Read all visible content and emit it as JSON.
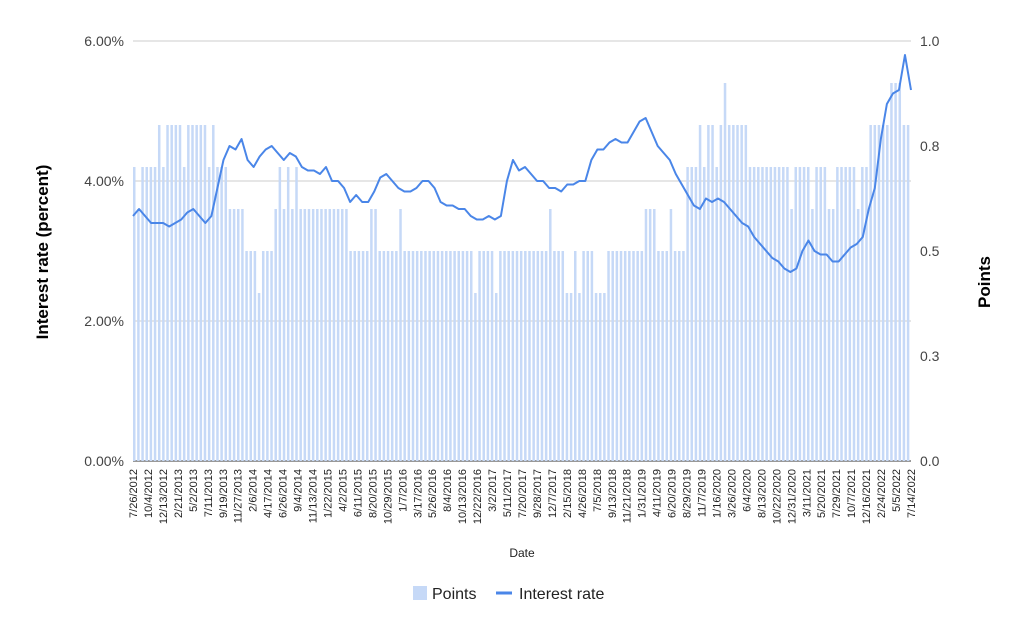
{
  "chart_data": {
    "type": "bar+line",
    "xlabel": "Date",
    "ylabel_left": "Interest rate (percent)",
    "ylabel_right": "Points",
    "ylim_left": [
      0,
      6
    ],
    "ylim_right": [
      0,
      1
    ],
    "left_ticks": [
      "0.00%",
      "2.00%",
      "4.00%",
      "6.00%"
    ],
    "right_ticks": [
      "0.0",
      "0.3",
      "0.5",
      "0.8",
      "1.0"
    ],
    "grid": true,
    "legend_position": "bottom",
    "x_tick_labels": [
      "7/26/2012",
      "10/4/2012",
      "12/13/2012",
      "2/21/2013",
      "5/2/2013",
      "7/11/2013",
      "9/19/2013",
      "11/27/2013",
      "2/6/2014",
      "4/17/2014",
      "6/26/2014",
      "9/4/2014",
      "11/13/2014",
      "1/22/2015",
      "4/2/2015",
      "6/11/2015",
      "8/20/2015",
      "10/29/2015",
      "1/7/2016",
      "3/17/2016",
      "5/26/2016",
      "8/4/2016",
      "10/13/2016",
      "12/22/2016",
      "3/2/2017",
      "5/11/2017",
      "7/20/2017",
      "9/28/2017",
      "12/7/2017",
      "2/15/2018",
      "4/26/2018",
      "7/5/2018",
      "9/13/2018",
      "11/21/2018",
      "1/31/2019",
      "4/11/2019",
      "6/20/2019",
      "8/29/2019",
      "11/7/2019",
      "1/16/2020",
      "3/26/2020",
      "6/4/2020",
      "8/13/2020",
      "10/22/2020",
      "12/31/2020",
      "3/11/2021",
      "5/20/2021",
      "7/29/2021",
      "10/7/2021",
      "12/16/2021",
      "2/24/2022",
      "5/5/2022",
      "7/14/2022"
    ],
    "series": [
      {
        "name": "Points",
        "type": "bar",
        "axis": "right",
        "color": "#c6d9f7",
        "values": [
          0.7,
          0.6,
          0.7,
          0.7,
          0.7,
          0.7,
          0.8,
          0.7,
          0.8,
          0.8,
          0.8,
          0.8,
          0.7,
          0.8,
          0.8,
          0.8,
          0.8,
          0.8,
          0.7,
          0.8,
          0.7,
          0.7,
          0.7,
          0.6,
          0.6,
          0.6,
          0.6,
          0.5,
          0.5,
          0.5,
          0.4,
          0.5,
          0.5,
          0.5,
          0.6,
          0.7,
          0.6,
          0.7,
          0.6,
          0.7,
          0.6,
          0.6,
          0.6,
          0.6,
          0.6,
          0.6,
          0.6,
          0.6,
          0.6,
          0.6,
          0.6,
          0.6,
          0.5,
          0.5,
          0.5,
          0.5,
          0.5,
          0.6,
          0.6,
          0.5,
          0.5,
          0.5,
          0.5,
          0.5,
          0.6,
          0.5,
          0.5,
          0.5,
          0.5,
          0.5,
          0.5,
          0.5,
          0.5,
          0.5,
          0.5,
          0.5,
          0.5,
          0.5,
          0.5,
          0.5,
          0.5,
          0.5,
          0.4,
          0.5,
          0.5,
          0.5,
          0.5,
          0.4,
          0.5,
          0.5,
          0.5,
          0.5,
          0.5,
          0.5,
          0.5,
          0.5,
          0.5,
          0.5,
          0.5,
          0.5,
          0.6,
          0.5,
          0.5,
          0.5,
          0.4,
          0.4,
          0.5,
          0.4,
          0.5,
          0.5,
          0.5,
          0.4,
          0.4,
          0.4,
          0.5,
          0.5,
          0.5,
          0.5,
          0.5,
          0.5,
          0.5,
          0.5,
          0.5,
          0.6,
          0.6,
          0.6,
          0.5,
          0.5,
          0.5,
          0.6,
          0.5,
          0.5,
          0.5,
          0.7,
          0.7,
          0.7,
          0.8,
          0.7,
          0.8,
          0.8,
          0.7,
          0.8,
          0.9,
          0.8,
          0.8,
          0.8,
          0.8,
          0.8,
          0.7,
          0.7,
          0.7,
          0.7,
          0.7,
          0.7,
          0.7,
          0.7,
          0.7,
          0.7,
          0.6,
          0.7,
          0.7,
          0.7,
          0.7,
          0.6,
          0.7,
          0.7,
          0.7,
          0.6,
          0.6,
          0.7,
          0.7,
          0.7,
          0.7,
          0.7,
          0.6,
          0.7,
          0.7,
          0.8,
          0.8,
          0.8,
          0.8,
          0.8,
          0.9,
          0.9,
          0.9,
          0.8,
          0.8
        ]
      },
      {
        "name": "Interest rate",
        "type": "line",
        "axis": "left",
        "color": "#4a86e8",
        "values": [
          3.5,
          3.6,
          3.5,
          3.4,
          3.4,
          3.4,
          3.35,
          3.4,
          3.45,
          3.55,
          3.6,
          3.5,
          3.4,
          3.5,
          3.9,
          4.3,
          4.5,
          4.45,
          4.6,
          4.3,
          4.2,
          4.35,
          4.45,
          4.5,
          4.4,
          4.3,
          4.4,
          4.35,
          4.2,
          4.15,
          4.15,
          4.1,
          4.2,
          4.0,
          4.0,
          3.9,
          3.7,
          3.8,
          3.7,
          3.7,
          3.85,
          4.05,
          4.1,
          4.0,
          3.9,
          3.85,
          3.85,
          3.9,
          4.0,
          4.0,
          3.9,
          3.7,
          3.65,
          3.65,
          3.6,
          3.6,
          3.5,
          3.45,
          3.45,
          3.5,
          3.45,
          3.5,
          4.0,
          4.3,
          4.15,
          4.2,
          4.1,
          4.0,
          4.0,
          3.9,
          3.9,
          3.85,
          3.95,
          3.95,
          4.0,
          4.0,
          4.3,
          4.45,
          4.45,
          4.55,
          4.6,
          4.55,
          4.55,
          4.7,
          4.85,
          4.9,
          4.7,
          4.5,
          4.4,
          4.3,
          4.1,
          3.95,
          3.8,
          3.65,
          3.6,
          3.75,
          3.7,
          3.75,
          3.7,
          3.6,
          3.5,
          3.4,
          3.35,
          3.2,
          3.1,
          3.0,
          2.9,
          2.85,
          2.75,
          2.7,
          2.75,
          3.0,
          3.15,
          3.0,
          2.95,
          2.95,
          2.85,
          2.85,
          2.95,
          3.05,
          3.1,
          3.2,
          3.6,
          3.9,
          4.6,
          5.1,
          5.25,
          5.3,
          5.8,
          5.3
        ]
      }
    ]
  },
  "legend": {
    "points_label": "Points",
    "rate_label": "Interest rate"
  }
}
